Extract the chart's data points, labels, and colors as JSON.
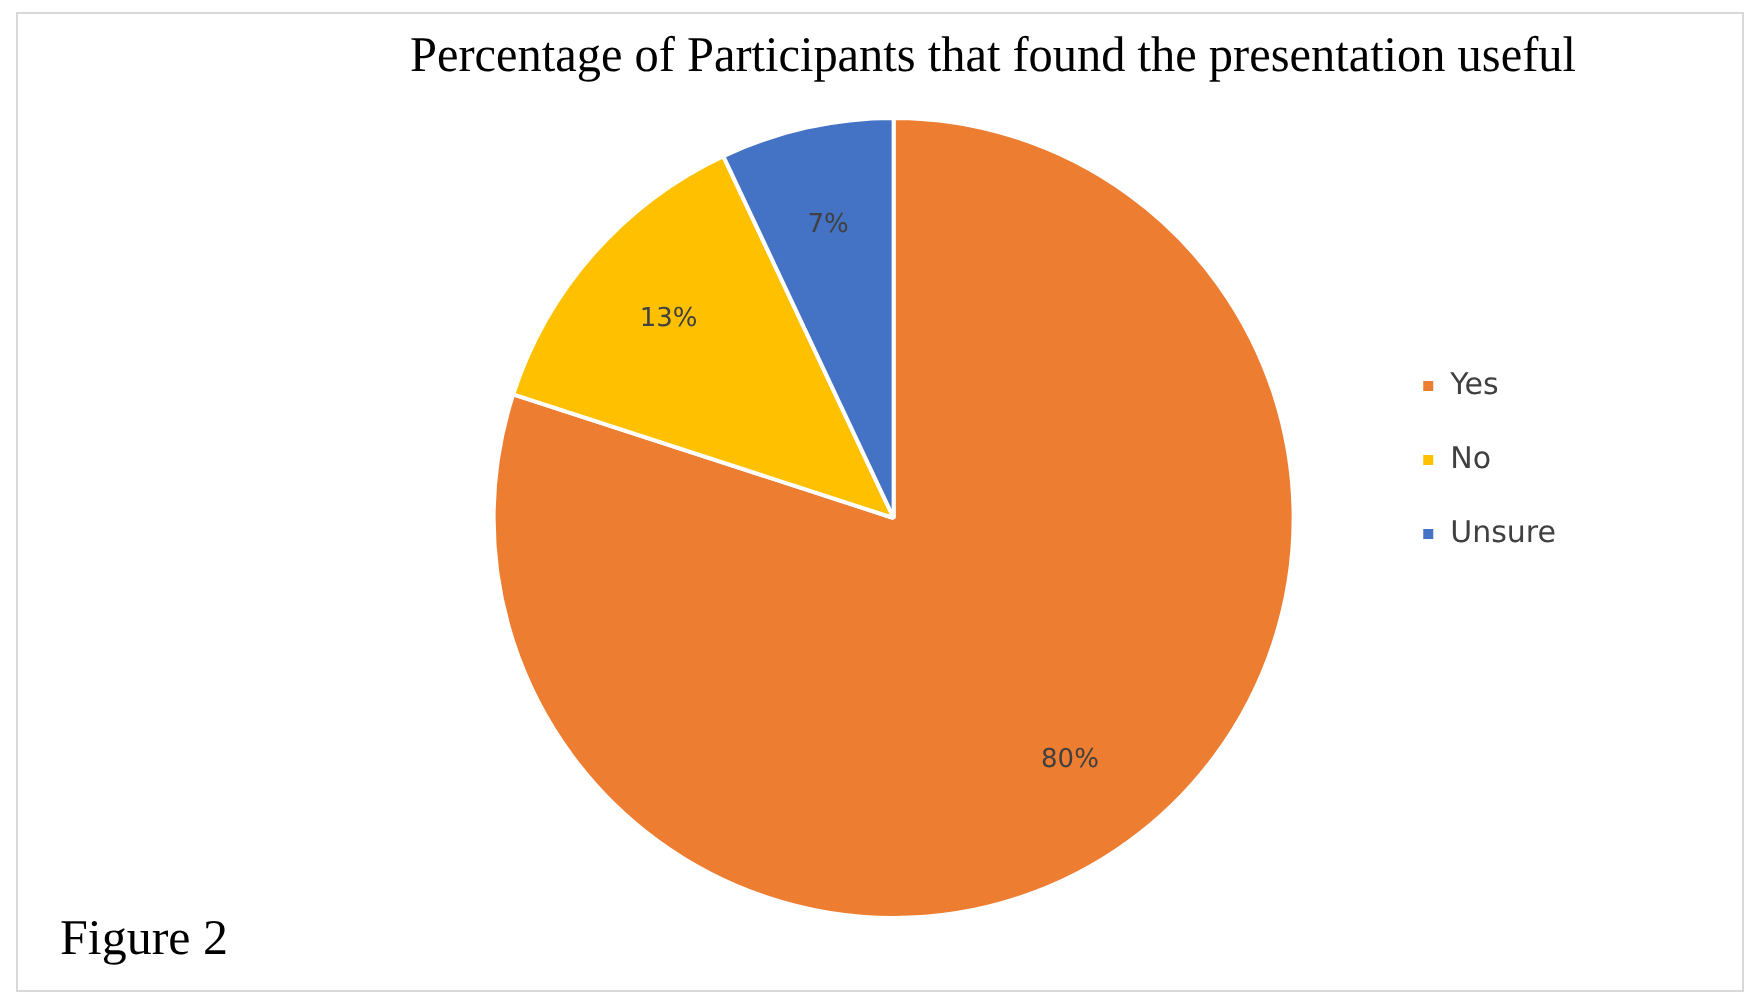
{
  "chart_data": {
    "type": "pie",
    "title": "Percentage of Participants that found the presentation useful",
    "categories": [
      "Yes",
      "No",
      "Unsure"
    ],
    "values": [
      80,
      13,
      7
    ],
    "colors": [
      "#ed7d31",
      "#ffc000",
      "#4472c4"
    ],
    "value_labels": [
      "80%",
      "13%",
      "7%"
    ],
    "legend": "right",
    "annotations": [
      "Figure 2"
    ]
  }
}
